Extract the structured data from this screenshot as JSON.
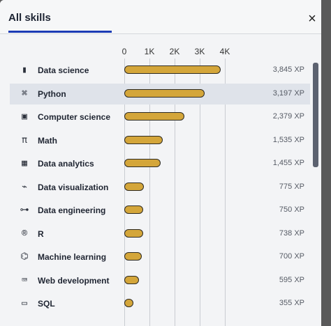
{
  "header": {
    "title": "All skills",
    "close_icon": "×"
  },
  "axis": {
    "ticks": [
      "0",
      "1K",
      "2K",
      "3K",
      "4K"
    ],
    "max_xp": 4000
  },
  "bar_color": "#d4a63a",
  "skills": [
    {
      "name": "Data science",
      "xp": 3845,
      "xp_label": "3,845 XP",
      "icon": "data-science-icon",
      "glyph": "▮"
    },
    {
      "name": "Python",
      "xp": 3197,
      "xp_label": "3,197 XP",
      "icon": "python-icon",
      "glyph": "⌘"
    },
    {
      "name": "Computer science",
      "xp": 2379,
      "xp_label": "2,379 XP",
      "icon": "chip-icon",
      "glyph": "▣"
    },
    {
      "name": "Math",
      "xp": 1535,
      "xp_label": "1,535 XP",
      "icon": "pi-icon",
      "glyph": "π"
    },
    {
      "name": "Data analytics",
      "xp": 1455,
      "xp_label": "1,455 XP",
      "icon": "table-icon",
      "glyph": "▦"
    },
    {
      "name": "Data visualization",
      "xp": 775,
      "xp_label": "775 XP",
      "icon": "chart-icon",
      "glyph": "⌁"
    },
    {
      "name": "Data engineering",
      "xp": 750,
      "xp_label": "750 XP",
      "icon": "pipeline-icon",
      "glyph": "⊶"
    },
    {
      "name": "R",
      "xp": 738,
      "xp_label": "738 XP",
      "icon": "r-icon",
      "glyph": "®"
    },
    {
      "name": "Machine learning",
      "xp": 700,
      "xp_label": "700 XP",
      "icon": "brain-icon",
      "glyph": "⌬"
    },
    {
      "name": "Web development",
      "xp": 595,
      "xp_label": "595 XP",
      "icon": "code-icon",
      "glyph": "⌨"
    },
    {
      "name": "SQL",
      "xp": 355,
      "xp_label": "355 XP",
      "icon": "sql-icon",
      "glyph": "▭"
    }
  ],
  "highlighted_index": 1
}
